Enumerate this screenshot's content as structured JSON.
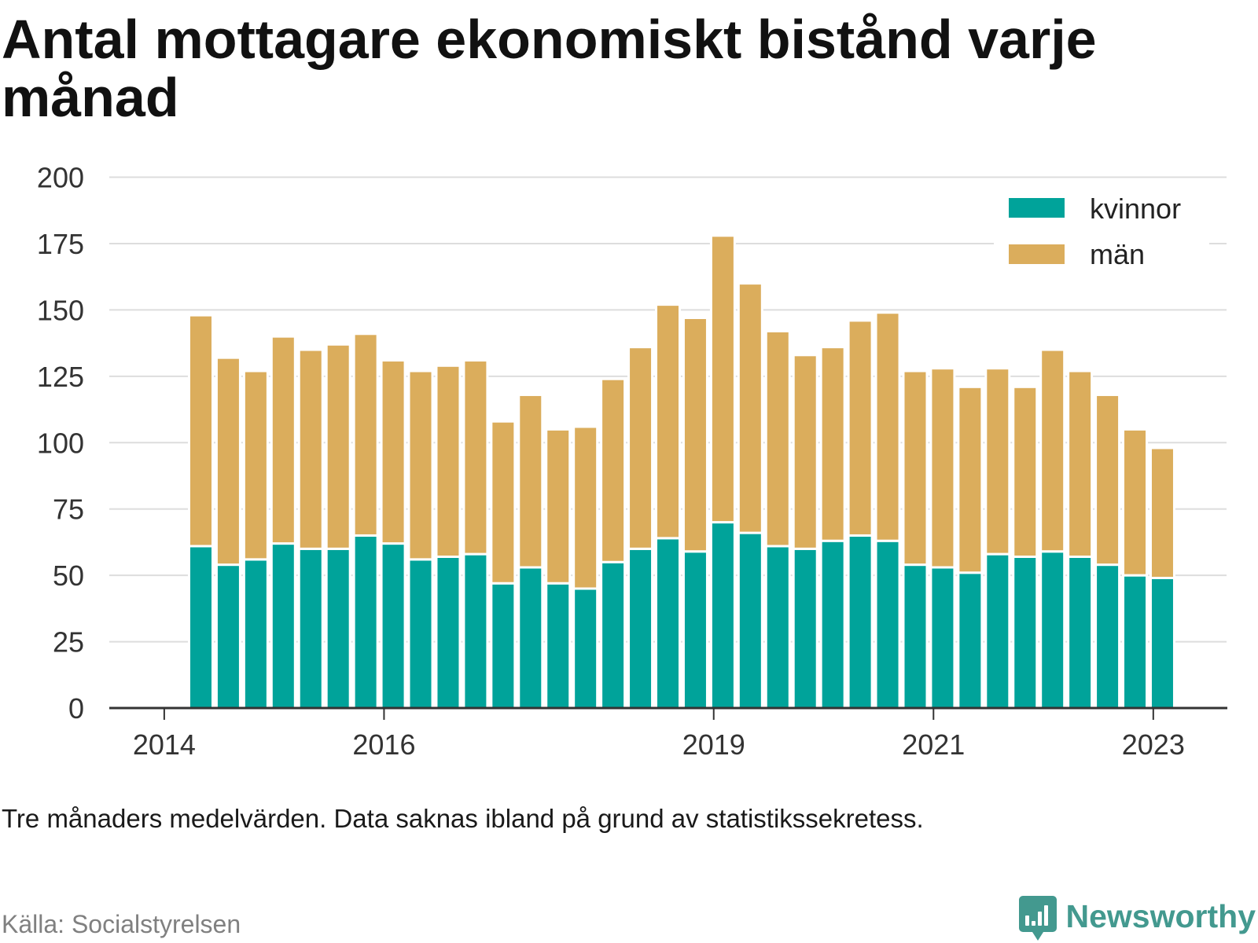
{
  "chart_data": {
    "type": "bar",
    "stacked": true,
    "title": "Antal mottagare ekonomiskt bistånd varje månad",
    "x": [
      "2014-05",
      "2014-08",
      "2014-11",
      "2015-02",
      "2015-05",
      "2015-08",
      "2015-11",
      "2016-02",
      "2016-05",
      "2016-08",
      "2016-11",
      "2017-02",
      "2017-05",
      "2017-08",
      "2017-11",
      "2018-02",
      "2018-05",
      "2018-08",
      "2018-11",
      "2019-02",
      "2019-05",
      "2019-08",
      "2019-11",
      "2020-02",
      "2020-05",
      "2020-08",
      "2020-11",
      "2021-02",
      "2021-05",
      "2021-08",
      "2021-11",
      "2022-02",
      "2022-05",
      "2022-08",
      "2022-11",
      "2023-02"
    ],
    "xticks": [
      "2014",
      "2016",
      "2019",
      "2021",
      "2023"
    ],
    "xlim": [
      "2013-07",
      "2023-09"
    ],
    "yticks": [
      0,
      25,
      50,
      75,
      100,
      125,
      150,
      175,
      200
    ],
    "ylim": [
      0,
      200
    ],
    "grid": true,
    "legend": "top-right",
    "series": [
      {
        "name": "kvinnor",
        "color": "#00a39a",
        "values": [
          61,
          54,
          56,
          62,
          60,
          60,
          65,
          62,
          56,
          57,
          58,
          47,
          53,
          47,
          45,
          55,
          60,
          64,
          59,
          70,
          66,
          61,
          60,
          63,
          65,
          63,
          54,
          53,
          51,
          58,
          57,
          59,
          57,
          54,
          50,
          49
        ]
      },
      {
        "name": "män",
        "color": "#dbad5c",
        "values": [
          87,
          78,
          71,
          78,
          75,
          77,
          76,
          69,
          71,
          72,
          73,
          61,
          65,
          58,
          61,
          69,
          76,
          88,
          88,
          108,
          94,
          81,
          73,
          73,
          81,
          86,
          73,
          75,
          70,
          70,
          64,
          76,
          70,
          64,
          55,
          49
        ]
      }
    ]
  },
  "note": "Tre månaders medelvärden. Data saknas ibland på grund av statistikssekretess.",
  "source": "Källa: Socialstyrelsen",
  "logo": {
    "text": "Newsworthy",
    "icon": "newsworthy-bubble-chart-icon"
  },
  "colors": {
    "text": "#111111",
    "axis": "#333333",
    "grid": "#dddddd",
    "muted": "#808080",
    "brand": "#43998f"
  }
}
